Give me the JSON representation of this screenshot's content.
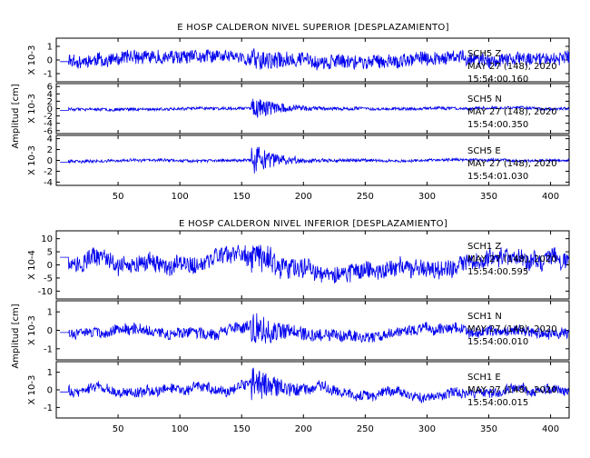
{
  "chart_data": [
    {
      "type": "line",
      "title": "E HOSP CALDERON NIVEL SUPERIOR [DESPLAZAMIENTO]",
      "ylabel": "Amplitud [cm]",
      "xlim": [
        0,
        415
      ],
      "x_ticks": [
        50,
        100,
        150,
        200,
        250,
        300,
        350,
        400
      ],
      "traces": [
        {
          "channel": "SCH5 Z",
          "date": "MAY 27 (148), 2020",
          "time": "15:54:00.160",
          "scale": "X 10-3",
          "ylim": [
            -1.6,
            1.6
          ],
          "y_ticks": [
            1,
            0,
            -1
          ],
          "color": "#0000ee"
        },
        {
          "channel": "SCH5 N",
          "date": "MAY 27 (148), 2020",
          "time": "15:54:00.350",
          "scale": "X 10-3",
          "ylim": [
            -6.8,
            6.8
          ],
          "y_ticks": [
            6,
            4,
            2,
            0,
            -2,
            -4,
            -6
          ],
          "color": "#0000ee"
        },
        {
          "channel": "SCH5 E",
          "date": "MAY 27 (148), 2020",
          "time": "15:54:01.030",
          "scale": "X 10-3",
          "ylim": [
            -4.6,
            4.6
          ],
          "y_ticks": [
            4,
            2,
            0,
            -2,
            -4
          ],
          "color": "#0000ee"
        }
      ]
    },
    {
      "type": "line",
      "title": "E HOSP CALDERON NIVEL INFERIOR [DESPLAZAMIENTO]",
      "ylabel": "Amplitud [cm]",
      "xlim": [
        0,
        415
      ],
      "x_ticks": [
        50,
        100,
        150,
        200,
        250,
        300,
        350,
        400
      ],
      "traces": [
        {
          "channel": "SCH1 Z",
          "date": "MAY 27 (148), 2020",
          "time": "15:54:00.595",
          "scale": "X 10-4",
          "ylim": [
            -13,
            13
          ],
          "y_ticks": [
            10,
            5,
            0,
            -5,
            -10
          ],
          "color": "#0000ee"
        },
        {
          "channel": "SCH1 N",
          "date": "MAY 27 (148), 2020",
          "time": "15:54:00.010",
          "scale": "X 10-3",
          "ylim": [
            -1.6,
            1.6
          ],
          "y_ticks": [
            1,
            0,
            -1
          ],
          "color": "#0000ee"
        },
        {
          "channel": "SCH1 E",
          "date": "MAY 27 (148), 2020",
          "time": "15:54:00.015",
          "scale": "X 10-3",
          "ylim": [
            -1.6,
            1.6
          ],
          "y_ticks": [
            1,
            0,
            -1
          ],
          "color": "#0000ee"
        }
      ]
    }
  ]
}
